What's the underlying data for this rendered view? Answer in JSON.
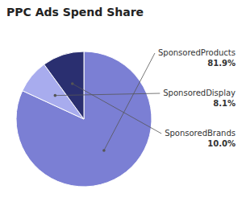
{
  "chart_data": {
    "type": "pie",
    "title": "PPC Ads Spend Share",
    "categories": [
      "SponsoredProducts",
      "SponsoredDisplay",
      "SponsoredBrands"
    ],
    "values": [
      81.9,
      8.1,
      10.0
    ],
    "value_labels": [
      "81.9%",
      "8.1%",
      "10.0%"
    ],
    "colors": [
      "#7B7FD4",
      "#A8ACEE",
      "#2A2F70"
    ],
    "data_labels": true
  }
}
